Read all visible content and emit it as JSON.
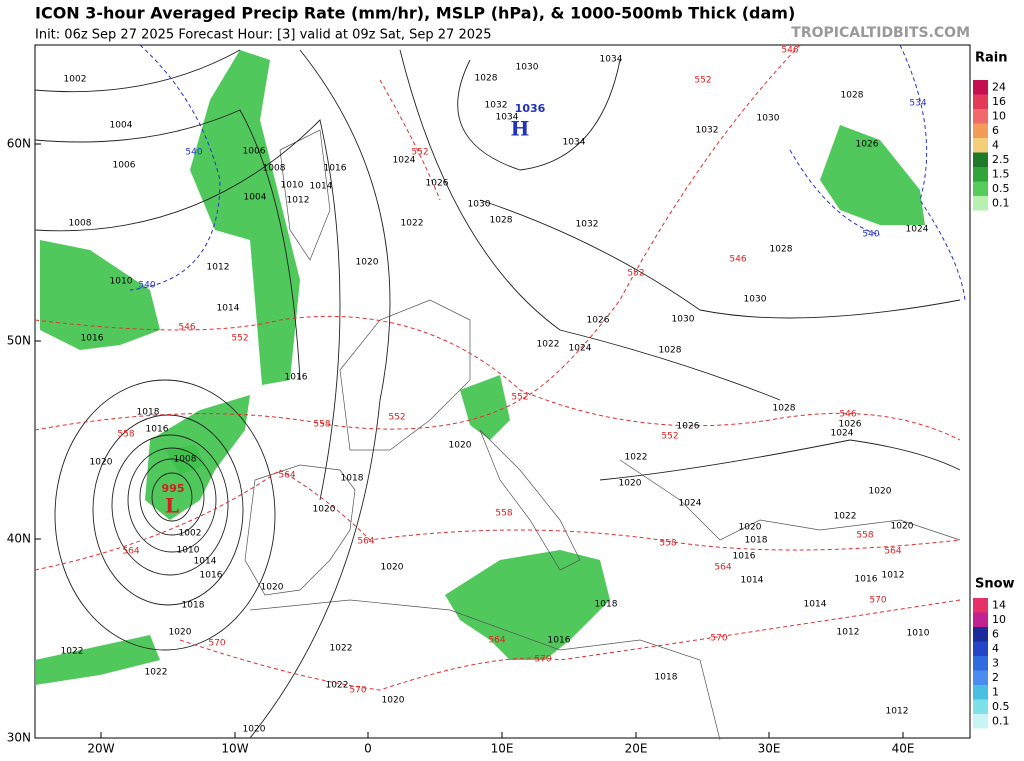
{
  "header": {
    "title": "ICON 3-hour Averaged Precip Rate (mm/hr), MSLP (hPa), & 1000-500mb Thick (dam)",
    "subtitle": "Init: 06z Sep 27 2025   Forecast Hour: [3]   valid at 09z Sat, Sep 27 2025",
    "site": "TROPICALTIDBITS.COM"
  },
  "map": {
    "lat_labels": [
      "60N",
      "50N",
      "40N",
      "30N"
    ],
    "lon_labels": [
      "20W",
      "10W",
      "0",
      "10E",
      "20E",
      "30E",
      "40E"
    ],
    "centers": [
      "L",
      "H"
    ],
    "center_values": [
      995,
      1036
    ],
    "isobar_labels": [
      1002,
      1004,
      1006,
      1008,
      1010,
      1012,
      1014,
      1016,
      1016,
      1018,
      1016,
      1020,
      1008,
      1002,
      1010,
      1014,
      1016,
      1018,
      1020,
      1022,
      1022,
      1020,
      1020,
      1018,
      1020,
      1020,
      1022,
      1022,
      1020,
      1006,
      1008,
      1010,
      1014,
      1012,
      1004,
      1016,
      1020,
      1024,
      1026,
      1022,
      1028,
      1030,
      1032,
      1034,
      1034,
      1030,
      1028,
      1032,
      1034,
      1032,
      1030,
      1028,
      1030,
      1026,
      1030,
      1022,
      1024,
      1028,
      1028,
      1026,
      1024,
      1026,
      1022,
      1020,
      1020,
      1024,
      1022,
      1020,
      1020,
      1020,
      1018,
      1016,
      1014,
      1016,
      1012,
      1014,
      1012,
      1010,
      1012,
      1018,
      1016,
      1018,
      1028,
      1026,
      1024
    ],
    "thickness_labels": [
      546,
      552,
      552,
      552,
      546,
      546,
      552,
      558,
      552,
      552,
      558,
      564,
      564,
      564,
      564,
      558,
      552,
      546,
      558,
      564,
      570,
      570,
      570,
      570,
      558,
      570,
      564
    ],
    "thickness_540_labels": [
      540,
      540,
      534,
      540
    ]
  },
  "legend": {
    "rain_title": "Rain",
    "rain_levels": [
      24,
      16,
      10,
      6,
      4,
      2.5,
      1.5,
      0.5,
      0.1
    ],
    "rain_colors": [
      "#c41050",
      "#e23a57",
      "#f06a6a",
      "#f29c5a",
      "#f3cf7a",
      "#1e7a2a",
      "#2fa43a",
      "#55cc5a",
      "#b8f0b0"
    ],
    "snow_title": "Snow",
    "snow_levels": [
      14,
      10,
      6,
      4,
      3,
      2,
      1,
      0.5,
      0.1
    ],
    "snow_colors": [
      "#e8306a",
      "#c02090",
      "#1a2a9a",
      "#2545c8",
      "#2f6ae0",
      "#4a8cf0",
      "#4ac0e0",
      "#7ee0e8",
      "#c8f4f4"
    ]
  }
}
